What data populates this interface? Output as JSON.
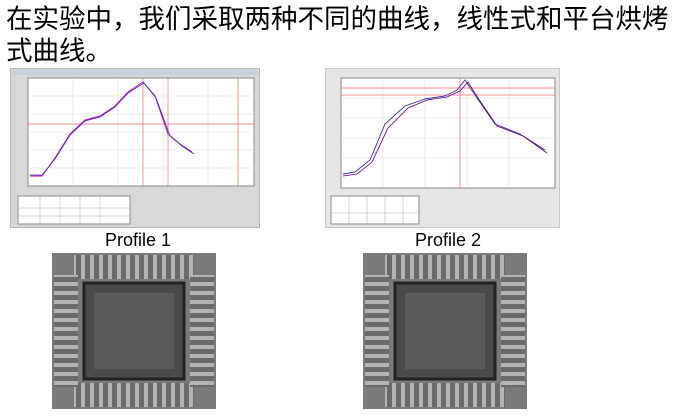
{
  "text": "在实验中，我们采取两种不同的曲线，线性式和平台烘烤式曲线。",
  "figures": [
    {
      "label": "Profile 1"
    },
    {
      "label": "Profile 2"
    }
  ]
}
